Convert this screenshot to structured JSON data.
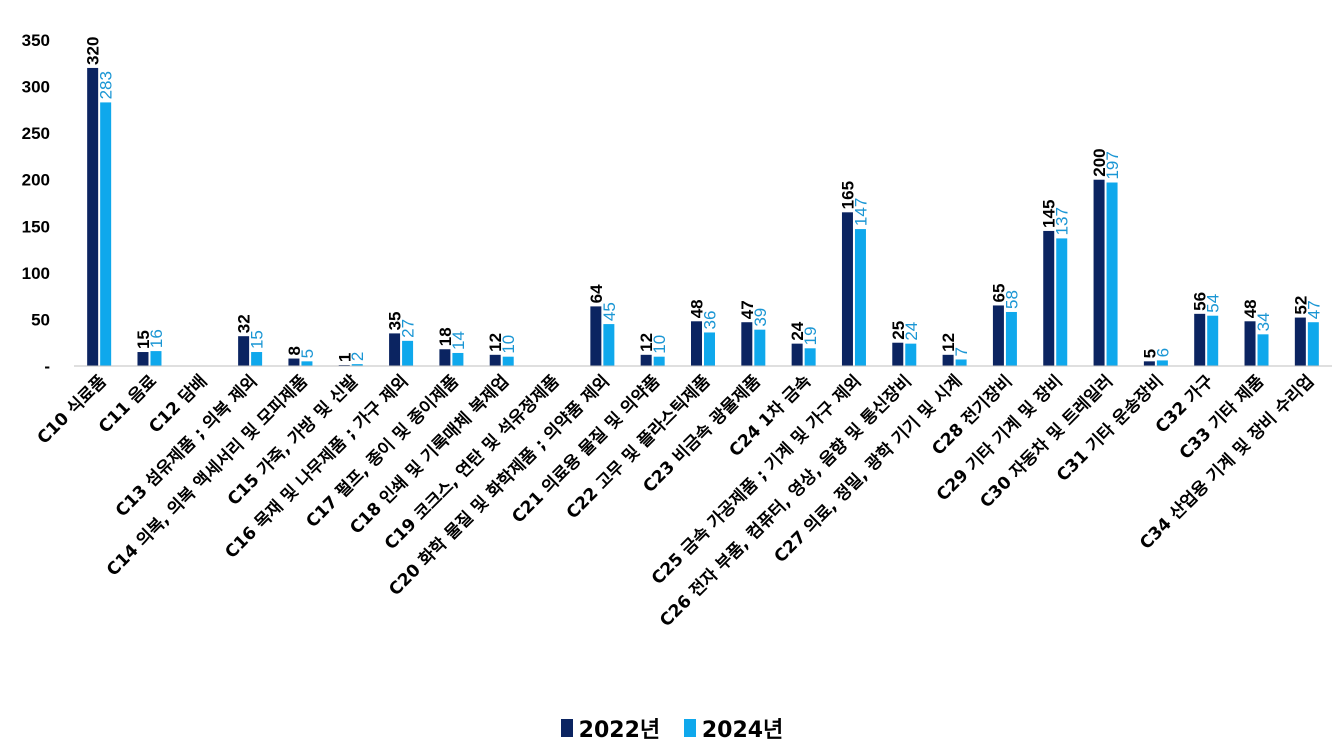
{
  "chart_data": {
    "type": "bar",
    "categories": [
      "C10 식료품",
      "C11 음료",
      "C12 담배",
      "C13 섬유제품 ; 의복 제외",
      "C14 의복, 의복 액세서리 및 모피제품",
      "C15 가죽, 가방 및 신발",
      "C16 목재 및 나무제품 ; 가구 제외",
      "C17 펄프, 종이 및 종이제품",
      "C18 인쇄 및 기록매체 복제업",
      "C19 코크스, 연탄 및 석유정제품",
      "C20 화학 물질 및 화학제품 ; 의약품 제외",
      "C21 의료용 물질 및 의약품",
      "C22 고무 및 플라스틱제품",
      "C23 비금속 광물제품",
      "C24 1차 금속",
      "C25 금속 가공제품 ; 기계 및 가구 제외",
      "C26 전자 부품, 컴퓨터, 영상, 음향 및 통신장비",
      "C27 의료, 정밀, 광학 기기 및 시계",
      "C28 전기장비",
      "C29 기타 기계 및 장비",
      "C30 자동차 및 트레일러",
      "C31 기타 운송장비",
      "C32 가구",
      "C33 기타 제품",
      "C34 산업용 기계 및 장비 수리업"
    ],
    "series": [
      {
        "name": "2022년",
        "color": "#0b2461",
        "values": [
          320,
          15,
          null,
          32,
          8,
          1,
          35,
          18,
          12,
          null,
          64,
          12,
          48,
          47,
          24,
          165,
          25,
          12,
          65,
          145,
          200,
          5,
          56,
          48,
          52
        ],
        "labels": [
          "320",
          "15",
          "",
          "32",
          "8",
          "1",
          "35",
          "18",
          "12",
          "",
          "64",
          "12",
          "48",
          "47",
          "24",
          "165",
          "25",
          "12",
          "65",
          "145",
          "200",
          "5",
          "56",
          "48",
          "52"
        ]
      },
      {
        "name": "2024년",
        "color": "#0fa8ec",
        "values": [
          283,
          16,
          null,
          15,
          5,
          2,
          27,
          14,
          10,
          null,
          45,
          10,
          36,
          39,
          19,
          147,
          24,
          7,
          58,
          137,
          197,
          6,
          54,
          34,
          47
        ],
        "labels": [
          "283",
          "16",
          "",
          "15",
          "5",
          "2",
          "27",
          "14",
          "10",
          "",
          "45",
          "10",
          "36",
          "39",
          "19",
          "147",
          "24",
          "7",
          "58",
          "137",
          "197",
          "6",
          "54",
          "34",
          "47"
        ]
      }
    ],
    "ylim": [
      0,
      350
    ],
    "yticks": [
      0,
      50,
      100,
      150,
      200,
      250,
      300,
      350
    ],
    "ytick_labels": [
      "-",
      "50",
      "100",
      "150",
      "200",
      "250",
      "300",
      "350"
    ],
    "title": "",
    "xlabel": "",
    "ylabel": "",
    "grid": false,
    "legend_position": "bottom"
  }
}
